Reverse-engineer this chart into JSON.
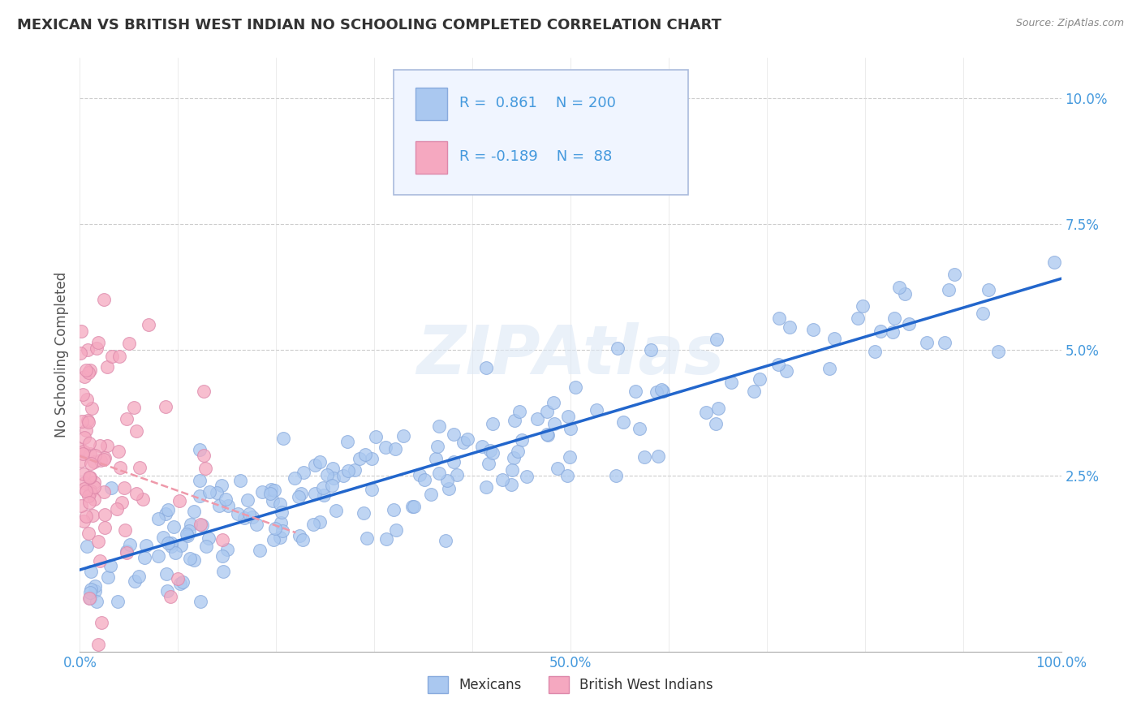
{
  "title": "MEXICAN VS BRITISH WEST INDIAN NO SCHOOLING COMPLETED CORRELATION CHART",
  "source": "Source: ZipAtlas.com",
  "ylabel": "No Schooling Completed",
  "xlim": [
    0,
    1.0
  ],
  "ylim": [
    -0.01,
    0.108
  ],
  "blue_R": "0.861",
  "blue_N": "200",
  "pink_R": "-0.189",
  "pink_N": "88",
  "blue_color": "#aac8f0",
  "blue_edge": "#88aadd",
  "pink_color": "#f5a8c0",
  "pink_edge": "#dd88aa",
  "line_blue_color": "#2266cc",
  "line_pink_color": "#ee99aa",
  "watermark": "ZIPAtlas",
  "legend_items": [
    "Mexicans",
    "British West Indians"
  ],
  "grid_color": "#cccccc",
  "title_color": "#333333",
  "tick_color": "#4499dd",
  "box_facecolor": "#f0f5ff",
  "box_edgecolor": "#aabbdd",
  "ytick_vals": [
    0.025,
    0.05,
    0.075,
    0.1
  ],
  "ytick_labels": [
    "2.5%",
    "5.0%",
    "7.5%",
    "10.0%"
  ],
  "xtick_vals": [
    0.0,
    0.5,
    1.0
  ],
  "xtick_labels": [
    "0.0%",
    "50.0%",
    "100.0%"
  ]
}
